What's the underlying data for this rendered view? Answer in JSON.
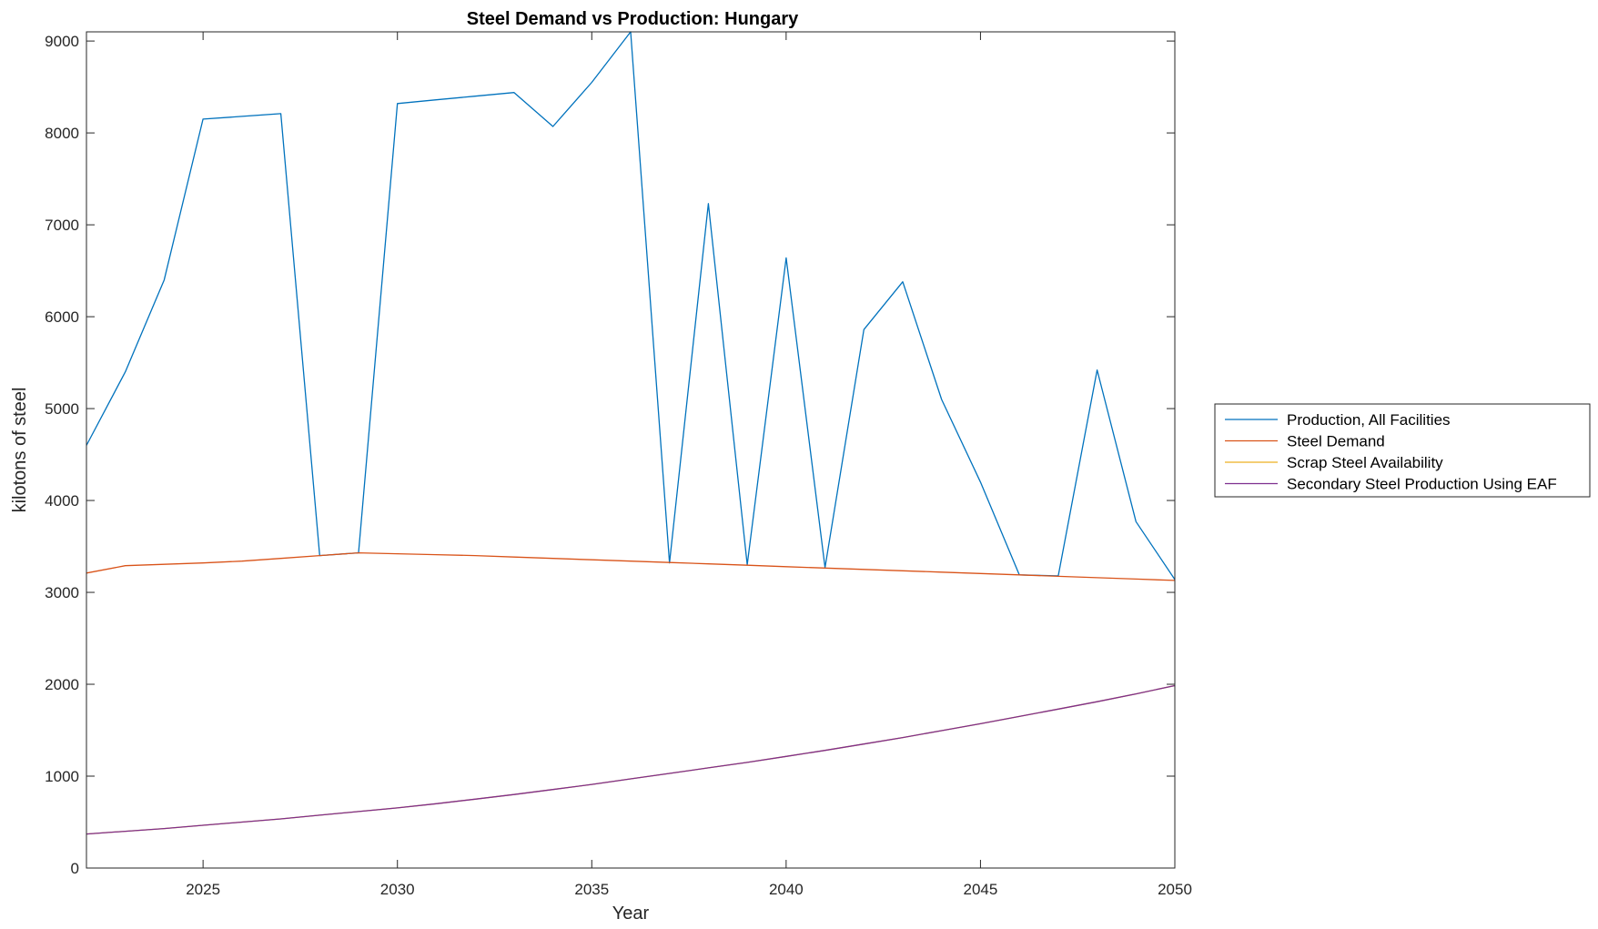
{
  "chart_data": {
    "type": "line",
    "title": "Steel Demand vs Production: Hungary",
    "xlabel": "Year",
    "ylabel": "kilotons of steel",
    "xlim": [
      2022,
      2050
    ],
    "ylim": [
      0,
      9100
    ],
    "x_ticks": [
      2025,
      2030,
      2035,
      2040,
      2045,
      2050
    ],
    "y_ticks": [
      0,
      1000,
      2000,
      3000,
      4000,
      5000,
      6000,
      7000,
      8000,
      9000
    ],
    "grid": false,
    "legend_position": "outside right",
    "x": [
      2022,
      2023,
      2024,
      2025,
      2026,
      2027,
      2028,
      2029,
      2030,
      2031,
      2032,
      2033,
      2034,
      2035,
      2036,
      2037,
      2038,
      2039,
      2040,
      2041,
      2042,
      2043,
      2044,
      2045,
      2046,
      2047,
      2048,
      2049,
      2050
    ],
    "series": [
      {
        "name": "Production, All Facilities",
        "color": "#0072BD",
        "values": [
          4600,
          5400,
          6400,
          8150,
          8180,
          8210,
          3400,
          3430,
          8320,
          8360,
          8400,
          8440,
          8070,
          8550,
          9100,
          3320,
          7230,
          3300,
          6640,
          3270,
          5860,
          6380,
          5100,
          4200,
          3190,
          3180,
          5420,
          3770,
          3140
        ]
      },
      {
        "name": "Steel Demand",
        "color": "#D95319",
        "values": [
          3210,
          3290,
          3305,
          3320,
          3340,
          3370,
          3400,
          3430,
          3420,
          3410,
          3400,
          3385,
          3370,
          3355,
          3340,
          3325,
          3310,
          3295,
          3280,
          3265,
          3250,
          3235,
          3220,
          3205,
          3190,
          3175,
          3160,
          3145,
          3130
        ]
      },
      {
        "name": "Scrap Steel Availability",
        "color": "#EDB120",
        "values": [
          370,
          400,
          430,
          465,
          500,
          535,
          575,
          615,
          655,
          700,
          750,
          800,
          855,
          910,
          970,
          1030,
          1090,
          1150,
          1215,
          1280,
          1350,
          1420,
          1495,
          1570,
          1650,
          1730,
          1810,
          1895,
          1985
        ]
      },
      {
        "name": "Secondary Steel Production Using EAF",
        "color": "#7E2F8E",
        "values": [
          370,
          400,
          430,
          465,
          500,
          535,
          575,
          615,
          655,
          700,
          750,
          800,
          855,
          910,
          970,
          1030,
          1090,
          1150,
          1215,
          1280,
          1350,
          1420,
          1495,
          1570,
          1650,
          1730,
          1810,
          1895,
          1985
        ]
      }
    ]
  }
}
